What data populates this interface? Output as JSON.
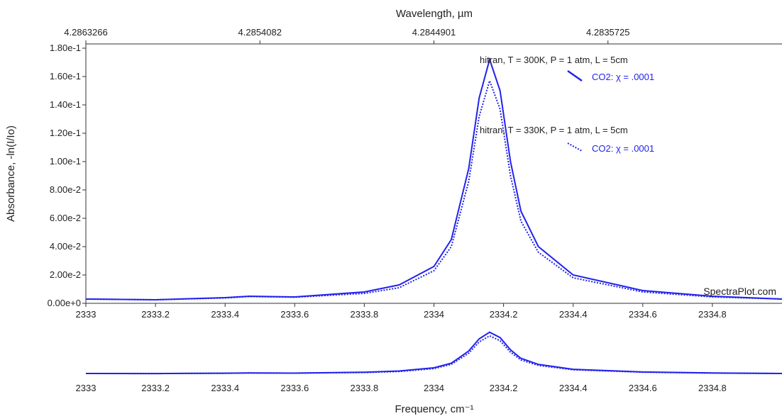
{
  "chart_data": {
    "type": "line",
    "top_axis_label": "Wavelength, µm",
    "top_ticks": [
      "4.2863266",
      "4.2854082",
      "4.2844901",
      "4.2835725"
    ],
    "xlabel": "Frequency, cm⁻¹",
    "ylabel": "Absorbance, -ln(I/Io)",
    "x_ticks": [
      "2333",
      "2333.2",
      "2333.4",
      "2333.6",
      "2333.8",
      "2334",
      "2334.2",
      "2334.4",
      "2334.6",
      "2334.8"
    ],
    "y_ticks": [
      "0.00e+0",
      "2.00e-2",
      "4.00e-2",
      "6.00e-2",
      "8.00e-2",
      "1.00e-1",
      "1.20e-1",
      "1.40e-1",
      "1.60e-1",
      "1.80e-1"
    ],
    "xlim": [
      2333,
      2335
    ],
    "ylim": [
      0,
      0.18
    ],
    "grid": false,
    "watermark": "SpectraPlot.com",
    "legend": [
      {
        "title": "hitran, T = 300K, P = 1 atm, L = 5cm",
        "entry": "CO2: χ = .0001",
        "style": "solid"
      },
      {
        "title": "hitran, T = 330K, P = 1 atm, L = 5cm",
        "entry": "CO2: χ = .0001",
        "style": "dotted"
      }
    ],
    "series": [
      {
        "style": "solid",
        "color": "#2222ee",
        "x": [
          2333.0,
          2333.2,
          2333.4,
          2333.47,
          2333.6,
          2333.8,
          2333.9,
          2334.0,
          2334.05,
          2334.1,
          2334.13,
          2334.16,
          2334.19,
          2334.22,
          2334.25,
          2334.3,
          2334.4,
          2334.6,
          2334.8,
          2335.0
        ],
        "y": [
          0.003,
          0.0025,
          0.004,
          0.005,
          0.0045,
          0.008,
          0.013,
          0.026,
          0.045,
          0.095,
          0.145,
          0.172,
          0.15,
          0.1,
          0.065,
          0.04,
          0.02,
          0.009,
          0.005,
          0.003
        ]
      },
      {
        "style": "dotted",
        "color": "#2222ee",
        "x": [
          2333.0,
          2333.2,
          2333.4,
          2333.47,
          2333.6,
          2333.8,
          2333.9,
          2334.0,
          2334.05,
          2334.1,
          2334.13,
          2334.16,
          2334.19,
          2334.22,
          2334.25,
          2334.3,
          2334.4,
          2334.6,
          2334.8,
          2335.0
        ],
        "y": [
          0.003,
          0.0025,
          0.0038,
          0.0048,
          0.0043,
          0.007,
          0.011,
          0.023,
          0.04,
          0.086,
          0.132,
          0.157,
          0.137,
          0.09,
          0.058,
          0.036,
          0.018,
          0.008,
          0.0045,
          0.003
        ]
      }
    ]
  }
}
